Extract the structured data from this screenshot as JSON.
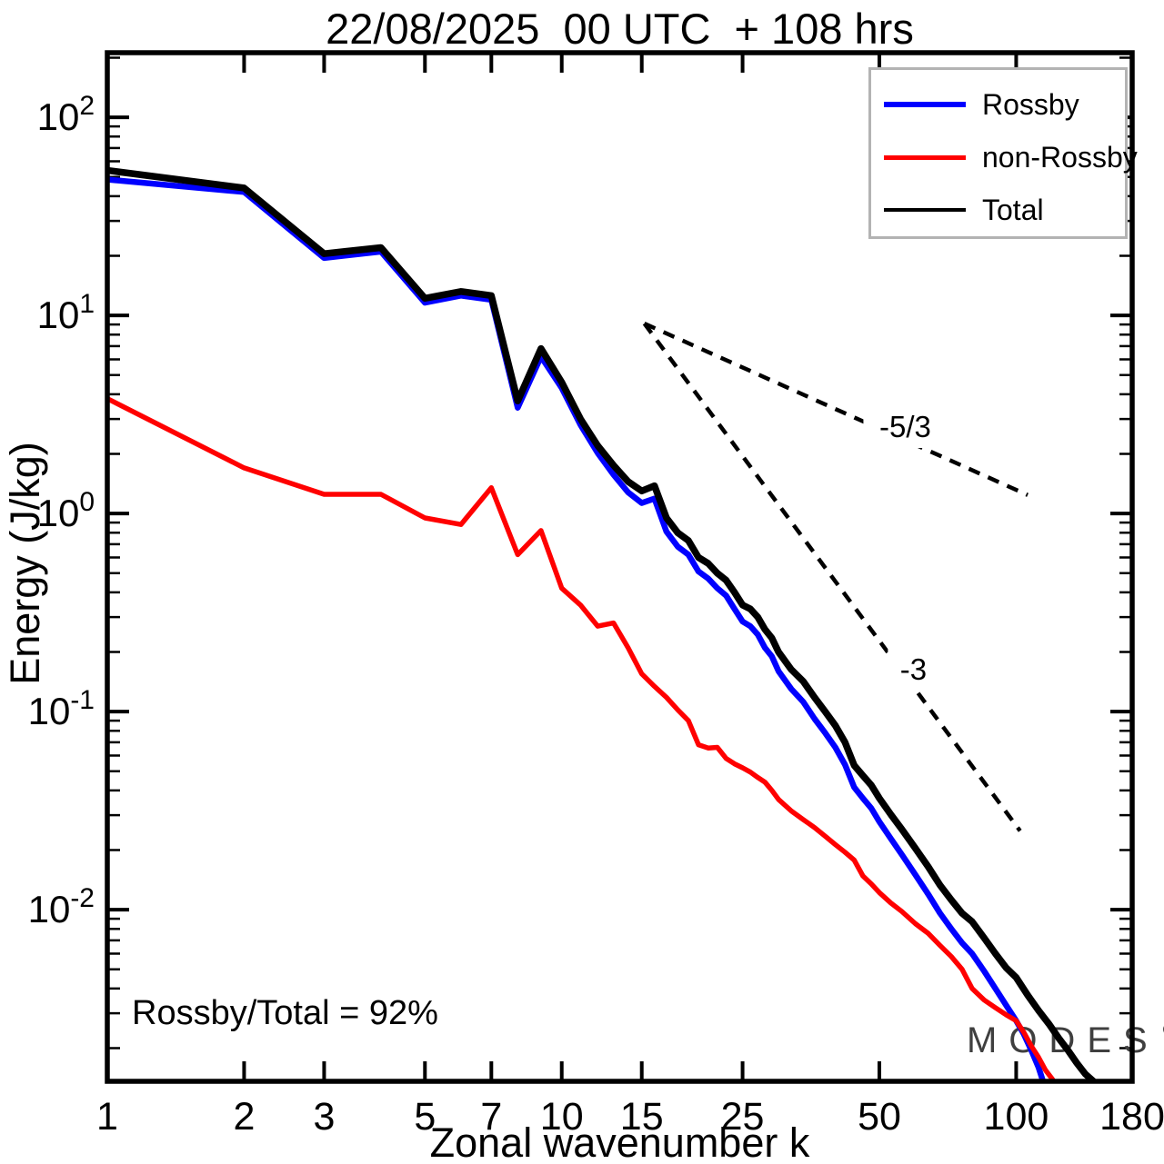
{
  "title": "22/08/2025  00 UTC  + 108 hrs",
  "axes": {
    "x": {
      "label": "Zonal wavenumber k"
    },
    "y": {
      "label": "Energy (J/kg)"
    }
  },
  "annotations": {
    "ratio_text": "Rossby/Total = 92%"
  },
  "watermark": {
    "text": "MODES",
    "mark": "©",
    "color": "#3f3f3f"
  },
  "legend": {
    "entries": [
      {
        "label": "Rossby",
        "color": "#0000ff",
        "sample_thickness": 6
      },
      {
        "label": "non-Rossby",
        "color": "#ff0000",
        "sample_thickness": 5
      },
      {
        "label": "Total",
        "color": "#000000",
        "sample_thickness": 4
      }
    ]
  },
  "chart_data": {
    "type": "line",
    "title": "22/08/2025  00 UTC  + 108 hrs",
    "xlabel": "Zonal wavenumber k",
    "ylabel": "Energy (J/kg)",
    "xscale": "log",
    "yscale": "log",
    "xlim": [
      1,
      180
    ],
    "ylim": [
      0.00136,
      212
    ],
    "grid": false,
    "legend_position": "top-right",
    "x_ticks": {
      "values": [
        1,
        2,
        3,
        5,
        7,
        10,
        15,
        25,
        50,
        100,
        180
      ],
      "labels": [
        "1",
        "2",
        "3",
        "5",
        "7",
        "10",
        "15",
        "25",
        "50",
        "100",
        "180"
      ]
    },
    "y_tick_exponents": [
      2,
      1,
      0,
      -1,
      -2
    ],
    "series": [
      {
        "name": "Rossby",
        "color": "#0000ff",
        "width": 6.5,
        "points": [
          [
            1,
            48.5
          ],
          [
            2,
            42
          ],
          [
            3,
            19.5
          ],
          [
            4,
            21
          ],
          [
            5,
            11.6
          ],
          [
            6,
            12.6
          ],
          [
            7,
            12.0
          ],
          [
            8,
            3.42
          ],
          [
            9,
            6.2
          ],
          [
            10,
            4.3
          ],
          [
            11,
            2.8
          ],
          [
            12,
            2.02
          ],
          [
            13,
            1.57
          ],
          [
            14,
            1.28
          ],
          [
            15,
            1.13
          ],
          [
            16,
            1.19
          ],
          [
            17,
            0.81
          ],
          [
            18,
            0.68
          ],
          [
            19,
            0.62
          ],
          [
            20,
            0.51
          ],
          [
            21,
            0.47
          ],
          [
            22,
            0.42
          ],
          [
            23,
            0.385
          ],
          [
            24,
            0.33
          ],
          [
            25,
            0.285
          ],
          [
            26,
            0.27
          ],
          [
            27,
            0.245
          ],
          [
            28,
            0.21
          ],
          [
            29,
            0.19
          ],
          [
            30,
            0.16
          ],
          [
            32,
            0.13
          ],
          [
            34,
            0.112
          ],
          [
            36,
            0.092
          ],
          [
            38,
            0.078
          ],
          [
            40,
            0.066
          ],
          [
            42,
            0.054
          ],
          [
            44,
            0.0415
          ],
          [
            46,
            0.0365
          ],
          [
            48,
            0.0325
          ],
          [
            50,
            0.0278
          ],
          [
            53,
            0.0228
          ],
          [
            56,
            0.019
          ],
          [
            60,
            0.015
          ],
          [
            64,
            0.012
          ],
          [
            68,
            0.0096
          ],
          [
            72,
            0.008
          ],
          [
            76,
            0.0068
          ],
          [
            80,
            0.006
          ],
          [
            85,
            0.0049
          ],
          [
            90,
            0.004
          ],
          [
            95,
            0.0033
          ],
          [
            100,
            0.00275
          ],
          [
            104,
            0.00235
          ],
          [
            108,
            0.00195
          ],
          [
            112,
            0.0016
          ],
          [
            116,
            0.00125
          ]
        ]
      },
      {
        "name": "non-Rossby",
        "color": "#ff0000",
        "width": 5.5,
        "points": [
          [
            1,
            3.8
          ],
          [
            2,
            1.7
          ],
          [
            3,
            1.25
          ],
          [
            4,
            1.25
          ],
          [
            5,
            0.95
          ],
          [
            6,
            0.88
          ],
          [
            7,
            1.35
          ],
          [
            8,
            0.62
          ],
          [
            9,
            0.82
          ],
          [
            10,
            0.42
          ],
          [
            11,
            0.345
          ],
          [
            12,
            0.27
          ],
          [
            13,
            0.28
          ],
          [
            14,
            0.21
          ],
          [
            15,
            0.155
          ],
          [
            16,
            0.134
          ],
          [
            17,
            0.118
          ],
          [
            18,
            0.102
          ],
          [
            19,
            0.09
          ],
          [
            20,
            0.068
          ],
          [
            21,
            0.0655
          ],
          [
            22,
            0.066
          ],
          [
            23,
            0.058
          ],
          [
            24,
            0.0545
          ],
          [
            25,
            0.052
          ],
          [
            26,
            0.0495
          ],
          [
            27,
            0.0465
          ],
          [
            28,
            0.044
          ],
          [
            29,
            0.04
          ],
          [
            30,
            0.036
          ],
          [
            32,
            0.0315
          ],
          [
            34,
            0.0285
          ],
          [
            36,
            0.026
          ],
          [
            38,
            0.0235
          ],
          [
            40,
            0.0213
          ],
          [
            42,
            0.0195
          ],
          [
            44,
            0.0178
          ],
          [
            46,
            0.0148
          ],
          [
            48,
            0.0135
          ],
          [
            50,
            0.0122
          ],
          [
            53,
            0.0108
          ],
          [
            56,
            0.0098
          ],
          [
            60,
            0.0085
          ],
          [
            64,
            0.0076
          ],
          [
            68,
            0.0066
          ],
          [
            72,
            0.0058
          ],
          [
            76,
            0.005
          ],
          [
            80,
            0.004
          ],
          [
            85,
            0.0035
          ],
          [
            90,
            0.0032
          ],
          [
            95,
            0.00295
          ],
          [
            100,
            0.00275
          ],
          [
            104,
            0.0024
          ],
          [
            108,
            0.00205
          ],
          [
            112,
            0.0018
          ],
          [
            116,
            0.00155
          ],
          [
            120,
            0.0014
          ],
          [
            124,
            0.00125
          ]
        ]
      },
      {
        "name": "Total",
        "color": "#000000",
        "width": 7.5,
        "points": [
          [
            1,
            54
          ],
          [
            2,
            44
          ],
          [
            3,
            20.5
          ],
          [
            4,
            22
          ],
          [
            5,
            12.2
          ],
          [
            6,
            13.2
          ],
          [
            7,
            12.6
          ],
          [
            8,
            3.7
          ],
          [
            9,
            6.8
          ],
          [
            10,
            4.6
          ],
          [
            11,
            3.0
          ],
          [
            12,
            2.2
          ],
          [
            13,
            1.75
          ],
          [
            14,
            1.45
          ],
          [
            15,
            1.3
          ],
          [
            16,
            1.38
          ],
          [
            17,
            0.95
          ],
          [
            18,
            0.8
          ],
          [
            19,
            0.73
          ],
          [
            20,
            0.6
          ],
          [
            21,
            0.56
          ],
          [
            22,
            0.5
          ],
          [
            23,
            0.46
          ],
          [
            24,
            0.4
          ],
          [
            25,
            0.345
          ],
          [
            26,
            0.33
          ],
          [
            27,
            0.3
          ],
          [
            28,
            0.26
          ],
          [
            29,
            0.235
          ],
          [
            30,
            0.2
          ],
          [
            32,
            0.163
          ],
          [
            34,
            0.142
          ],
          [
            36,
            0.118
          ],
          [
            38,
            0.1
          ],
          [
            40,
            0.085
          ],
          [
            42,
            0.07
          ],
          [
            44,
            0.0535
          ],
          [
            46,
            0.0475
          ],
          [
            48,
            0.0425
          ],
          [
            50,
            0.0365
          ],
          [
            53,
            0.0302
          ],
          [
            56,
            0.0255
          ],
          [
            60,
            0.0204
          ],
          [
            64,
            0.0165
          ],
          [
            68,
            0.0133
          ],
          [
            72,
            0.0112
          ],
          [
            76,
            0.0096
          ],
          [
            80,
            0.0087
          ],
          [
            85,
            0.0072
          ],
          [
            90,
            0.006
          ],
          [
            95,
            0.0051
          ],
          [
            100,
            0.00455
          ],
          [
            106,
            0.0037
          ],
          [
            112,
            0.0031
          ],
          [
            118,
            0.00265
          ],
          [
            124,
            0.00225
          ],
          [
            130,
            0.00195
          ],
          [
            136,
            0.00168
          ],
          [
            142,
            0.00148
          ],
          [
            148,
            0.00136
          ],
          [
            154,
            0.00122
          ],
          [
            160,
            0.00105
          ]
        ]
      }
    ],
    "reference_lines": [
      {
        "label": "-5/3",
        "points": [
          [
            15.2,
            9.1
          ],
          [
            106,
            1.24
          ]
        ],
        "label_at": [
          57,
          2.73
        ]
      },
      {
        "label": "-3",
        "points": [
          [
            15.2,
            9.1
          ],
          [
            102,
            0.025
          ]
        ],
        "label_at": [
          59.4,
          0.163
        ]
      }
    ],
    "annotation": "Rossby/Total = 92%"
  }
}
